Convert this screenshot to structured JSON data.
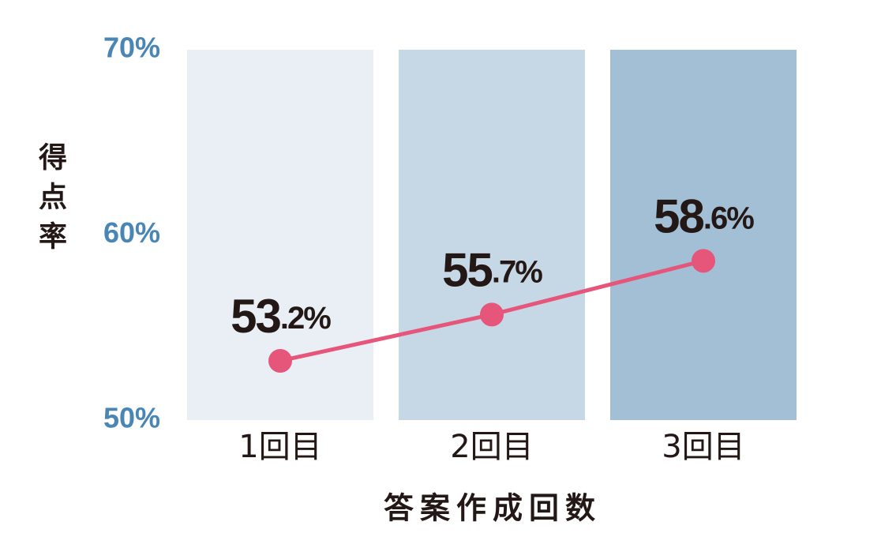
{
  "chart_data": {
    "type": "line",
    "x_label": "答案作成回数",
    "y_label": "得点率",
    "categories": [
      "1回目",
      "2回目",
      "3回目"
    ],
    "band_colors": [
      "#e9eff5",
      "#c6d8e6",
      "#a2bfd6"
    ],
    "series": [
      {
        "name": "得点率",
        "color": "#e6557a",
        "values": [
          53.2,
          55.7,
          58.6
        ],
        "value_labels": [
          "53.2%",
          "55.7%",
          "58.6%"
        ]
      }
    ],
    "ylim": [
      50,
      70
    ],
    "yticks": [
      {
        "value": 50,
        "label": "50%"
      },
      {
        "value": 60,
        "label": "60%"
      },
      {
        "value": 70,
        "label": "70%"
      }
    ]
  }
}
